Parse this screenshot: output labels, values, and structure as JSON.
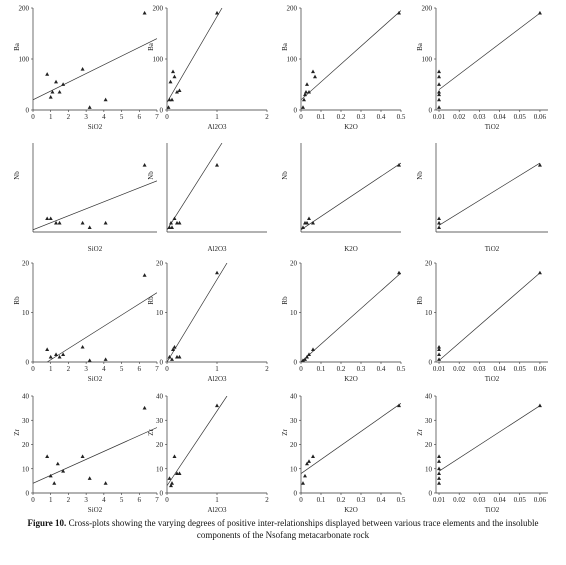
{
  "chart_data": [
    {
      "type": "scatter",
      "x_label": "SiO2",
      "y_label": "Ba",
      "x": [
        0.8,
        1.0,
        1.1,
        1.3,
        1.5,
        1.7,
        2.8,
        3.2,
        4.1,
        6.3
      ],
      "values": [
        70,
        25,
        35,
        55,
        35,
        50,
        80,
        5,
        20,
        190
      ],
      "xlim": [
        0,
        7
      ],
      "ylim": [
        0,
        200
      ],
      "xticks": [
        0,
        1,
        2,
        3,
        4,
        5,
        6,
        7
      ],
      "yticks": [
        0,
        100,
        200
      ],
      "trendline": {
        "x": [
          0,
          7
        ],
        "y": [
          20,
          140
        ]
      },
      "color": "#222222"
    },
    {
      "type": "scatter",
      "x_label": "Al2O3",
      "y_label": "Ba",
      "x": [
        0.03,
        0.05,
        0.07,
        0.1,
        0.12,
        0.15,
        0.2,
        0.25,
        1.0
      ],
      "values": [
        5,
        20,
        55,
        20,
        75,
        65,
        35,
        38,
        190
      ],
      "xlim": [
        0,
        2
      ],
      "ylim": [
        0,
        200
      ],
      "xticks": [
        0,
        1,
        2
      ],
      "yticks": [
        0,
        100,
        200
      ],
      "trendline": {
        "x": [
          0,
          1.1
        ],
        "y": [
          15,
          200
        ]
      },
      "color": "#222222"
    },
    {
      "type": "scatter",
      "x_label": "K2O",
      "y_label": "Ba",
      "x": [
        0.01,
        0.015,
        0.02,
        0.025,
        0.03,
        0.04,
        0.06,
        0.07,
        0.49
      ],
      "values": [
        5,
        20,
        30,
        35,
        50,
        35,
        75,
        65,
        190
      ],
      "xlim": [
        0,
        0.5
      ],
      "ylim": [
        0,
        200
      ],
      "xticks": [
        0,
        0.1,
        0.2,
        0.3,
        0.4,
        0.5
      ],
      "yticks": [
        0,
        100,
        200
      ],
      "trendline": {
        "x": [
          0,
          0.5
        ],
        "y": [
          20,
          195
        ]
      },
      "color": "#222222"
    },
    {
      "type": "scatter",
      "x_label": "TiO2",
      "y_label": "Ba",
      "x": [
        0.01,
        0.01,
        0.01,
        0.01,
        0.01,
        0.01,
        0.01,
        0.06
      ],
      "values": [
        5,
        20,
        35,
        50,
        65,
        75,
        30,
        190
      ],
      "xlim": [
        0.0085,
        0.064
      ],
      "ylim": [
        0,
        200
      ],
      "xticks": [
        0.01,
        0.02,
        0.03,
        0.04,
        0.05,
        0.06
      ],
      "yticks": [
        0,
        100,
        200
      ],
      "trendline": {
        "x": [
          0.01,
          0.06
        ],
        "y": [
          40,
          190
        ]
      },
      "color": "#222222"
    },
    {
      "type": "scatter",
      "x_label": "SiO2",
      "y_label": "Nb",
      "x": [
        0.8,
        1.0,
        1.3,
        1.5,
        2.8,
        3.2,
        4.1,
        6.3
      ],
      "values": [
        0.3,
        0.3,
        0.2,
        0.2,
        0.2,
        0.1,
        0.2,
        1.5
      ],
      "xlim": [
        0,
        7
      ],
      "ylim": [
        0,
        2
      ],
      "trendline": {
        "x": [
          0,
          7
        ],
        "y": [
          0.05,
          1.15
        ]
      },
      "color": "#222222"
    },
    {
      "type": "scatter",
      "x_label": "Al2O3",
      "y_label": "Nb",
      "x": [
        0.05,
        0.08,
        0.1,
        0.15,
        0.2,
        0.25,
        1.0
      ],
      "values": [
        0.1,
        0.2,
        0.1,
        0.3,
        0.2,
        0.2,
        1.5
      ],
      "xlim": [
        0,
        2
      ],
      "ylim": [
        0,
        2
      ],
      "trendline": {
        "x": [
          0,
          1.1
        ],
        "y": [
          0.05,
          2
        ]
      },
      "color": "#222222"
    },
    {
      "type": "scatter",
      "x_label": "K2O",
      "y_label": "Nb",
      "x": [
        0.01,
        0.02,
        0.03,
        0.04,
        0.06,
        0.49
      ],
      "values": [
        0.1,
        0.2,
        0.2,
        0.3,
        0.2,
        1.5
      ],
      "xlim": [
        0,
        0.5
      ],
      "ylim": [
        0,
        2
      ],
      "trendline": {
        "x": [
          0,
          0.5
        ],
        "y": [
          0.05,
          1.55
        ]
      },
      "color": "#222222"
    },
    {
      "type": "scatter",
      "x_label": "TiO2",
      "y_label": "Nb",
      "x": [
        0.01,
        0.01,
        0.01,
        0.06
      ],
      "values": [
        0.1,
        0.2,
        0.3,
        1.5
      ],
      "xlim": [
        0.0085,
        0.064
      ],
      "ylim": [
        0,
        2
      ],
      "trendline": {
        "x": [
          0.01,
          0.06
        ],
        "y": [
          0.15,
          1.55
        ]
      },
      "color": "#222222"
    },
    {
      "type": "scatter",
      "x_label": "SiO2",
      "y_label": "Rb",
      "x": [
        0.8,
        1.0,
        1.3,
        1.5,
        1.7,
        2.8,
        3.2,
        4.1,
        6.3
      ],
      "values": [
        2.5,
        1,
        1.5,
        1,
        1.5,
        3,
        0.3,
        0.5,
        17.5
      ],
      "xlim": [
        0,
        7
      ],
      "ylim": [
        0,
        20
      ],
      "xticks": [
        0,
        1,
        2,
        3,
        4,
        5,
        6,
        7
      ],
      "yticks": [
        0,
        10,
        20
      ],
      "trendline": {
        "x": [
          0.8,
          7
        ],
        "y": [
          0,
          14
        ]
      },
      "color": "#222222"
    },
    {
      "type": "scatter",
      "x_label": "Al2O3",
      "y_label": "Rb",
      "x": [
        0.05,
        0.1,
        0.12,
        0.15,
        0.2,
        0.25,
        1.0
      ],
      "values": [
        1,
        0.5,
        2.5,
        3,
        1,
        1,
        18
      ],
      "xlim": [
        0,
        2
      ],
      "ylim": [
        0,
        20
      ],
      "xticks": [
        0,
        1,
        2
      ],
      "yticks": [
        0,
        10,
        20
      ],
      "trendline": {
        "x": [
          0,
          1.2
        ],
        "y": [
          0,
          20
        ]
      },
      "color": "#222222"
    },
    {
      "type": "scatter",
      "x_label": "K2O",
      "y_label": "Rb",
      "x": [
        0.01,
        0.02,
        0.03,
        0.04,
        0.06,
        0.49
      ],
      "values": [
        0.3,
        0.5,
        1,
        1.5,
        2.5,
        18
      ],
      "xlim": [
        0,
        0.5
      ],
      "ylim": [
        0,
        20
      ],
      "xticks": [
        0,
        0.1,
        0.2,
        0.3,
        0.4,
        0.5
      ],
      "yticks": [
        0,
        10,
        20
      ],
      "trendline": {
        "x": [
          0,
          0.5
        ],
        "y": [
          0,
          18
        ]
      },
      "color": "#222222"
    },
    {
      "type": "scatter",
      "x_label": "TiO2",
      "y_label": "Rb",
      "x": [
        0.01,
        0.01,
        0.01,
        0.01,
        0.06
      ],
      "values": [
        0.5,
        1.5,
        2.5,
        3,
        18
      ],
      "xlim": [
        0.0085,
        0.064
      ],
      "ylim": [
        0,
        20
      ],
      "xticks": [
        0.01,
        0.02,
        0.03,
        0.04,
        0.05,
        0.06
      ],
      "yticks": [
        0,
        10,
        20
      ],
      "trendline": {
        "x": [
          0.01,
          0.06
        ],
        "y": [
          0.3,
          18
        ]
      },
      "color": "#222222"
    },
    {
      "type": "scatter",
      "x_label": "SiO2",
      "y_label": "Zr",
      "x": [
        0.8,
        1.0,
        1.2,
        1.4,
        1.7,
        2.8,
        3.2,
        4.1,
        6.3
      ],
      "values": [
        15,
        7,
        4,
        12,
        9,
        15,
        6,
        4,
        35
      ],
      "xlim": [
        0,
        7
      ],
      "ylim": [
        0,
        40
      ],
      "xticks": [
        0,
        1,
        2,
        3,
        4,
        5,
        6,
        7
      ],
      "yticks": [
        0,
        10,
        20,
        30,
        40
      ],
      "trendline": {
        "x": [
          0,
          7
        ],
        "y": [
          4,
          27
        ]
      },
      "color": "#222222"
    },
    {
      "type": "scatter",
      "x_label": "Al2O3",
      "y_label": "Zr",
      "x": [
        0.05,
        0.08,
        0.1,
        0.15,
        0.2,
        0.25,
        1.0
      ],
      "values": [
        6,
        3,
        4,
        15,
        8,
        8,
        36
      ],
      "xlim": [
        0,
        2
      ],
      "ylim": [
        0,
        40
      ],
      "xticks": [
        0,
        1,
        2
      ],
      "yticks": [
        0,
        10,
        20,
        30,
        40
      ],
      "trendline": {
        "x": [
          0,
          1.2
        ],
        "y": [
          3,
          40
        ]
      },
      "color": "#222222"
    },
    {
      "type": "scatter",
      "x_label": "K2O",
      "y_label": "Zr",
      "x": [
        0.01,
        0.02,
        0.03,
        0.04,
        0.06,
        0.49
      ],
      "values": [
        4,
        7,
        12,
        13,
        15,
        36
      ],
      "xlim": [
        0,
        0.5
      ],
      "ylim": [
        0,
        40
      ],
      "xticks": [
        0,
        0.1,
        0.2,
        0.3,
        0.4,
        0.5
      ],
      "yticks": [
        0,
        10,
        20,
        30,
        40
      ],
      "trendline": {
        "x": [
          0,
          0.5
        ],
        "y": [
          8,
          37
        ]
      },
      "color": "#222222"
    },
    {
      "type": "scatter",
      "x_label": "TiO2",
      "y_label": "Zr",
      "x": [
        0.01,
        0.01,
        0.01,
        0.01,
        0.01,
        0.01,
        0.06
      ],
      "values": [
        4,
        6,
        8,
        10,
        13,
        15,
        36
      ],
      "xlim": [
        0.0085,
        0.064
      ],
      "ylim": [
        0,
        40
      ],
      "xticks": [
        0.01,
        0.02,
        0.03,
        0.04,
        0.05,
        0.06
      ],
      "yticks": [
        0,
        10,
        20,
        30,
        40
      ],
      "trendline": {
        "x": [
          0.01,
          0.06
        ],
        "y": [
          9,
          36
        ]
      },
      "color": "#222222"
    }
  ],
  "caption": {
    "label": "Figure 10.",
    "text": "Cross-plots showing the varying degrees of positive inter-relationships displayed between various trace elements and the insoluble components of the Nsofang metacarbonate rock"
  }
}
